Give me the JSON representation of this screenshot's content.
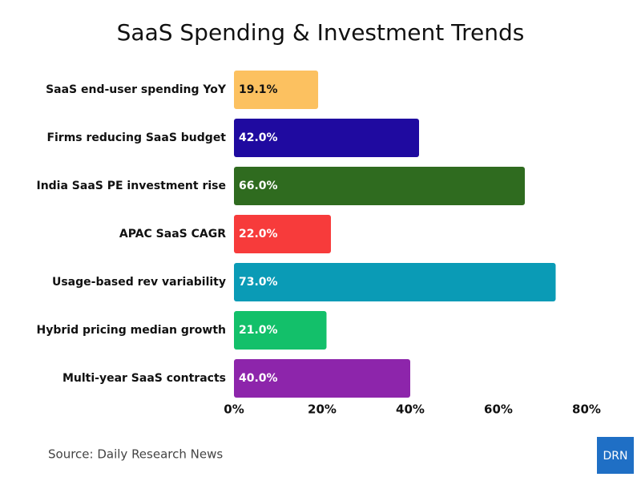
{
  "chart_data": {
    "type": "bar",
    "orientation": "horizontal",
    "title": "SaaS Spending & Investment Trends",
    "categories": [
      "SaaS end-user spending YoY",
      "Firms reducing SaaS budget",
      "India SaaS PE investment rise",
      "APAC SaaS CAGR",
      "Usage-based rev variability",
      "Hybrid pricing median growth",
      "Multi-year SaaS contracts"
    ],
    "values": [
      19.1,
      42.0,
      66.0,
      22.0,
      73.0,
      21.0,
      40.0
    ],
    "value_labels": [
      "19.1%",
      "42.0%",
      "66.0%",
      "22.0%",
      "73.0%",
      "21.0%",
      "40.0%"
    ],
    "colors": [
      "#fcc160",
      "#1f0aa0",
      "#2f6b1f",
      "#f73b3b",
      "#0a9bb6",
      "#13c06a",
      "#8d25ab"
    ],
    "xlim": [
      0,
      80
    ],
    "xticks": [
      {
        "value": 0,
        "label": "0%"
      },
      {
        "value": 20,
        "label": "20%"
      },
      {
        "value": 40,
        "label": "40%"
      },
      {
        "value": 60,
        "label": "60%"
      },
      {
        "value": 80,
        "label": "80%"
      }
    ],
    "source": "Source: Daily Research News",
    "logo": "DRN"
  }
}
